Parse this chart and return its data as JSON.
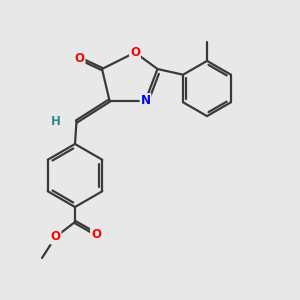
{
  "bg_color": "#e8e8e8",
  "bond_color": "#3a3a3a",
  "bond_width": 1.6,
  "atom_colors": {
    "O": "#ff0000",
    "N": "#0000ff",
    "H": "#2e8b8b"
  },
  "font_size": 8.5,
  "fig_width": 3.0,
  "fig_height": 3.0,
  "xlim": [
    0.0,
    10.0
  ],
  "ylim": [
    0.5,
    10.5
  ]
}
